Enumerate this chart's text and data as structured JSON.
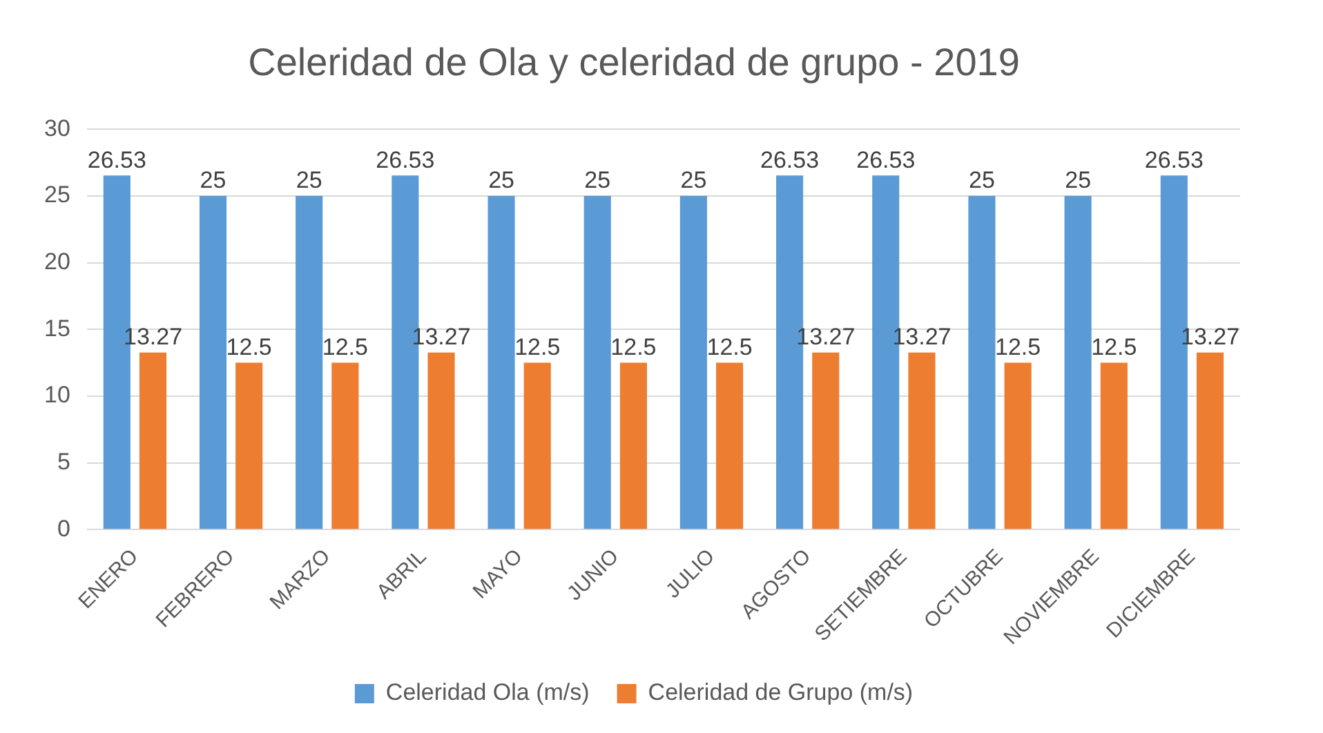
{
  "chart_data": {
    "type": "bar",
    "title": "Celeridad de Ola y celeridad de grupo - 2019",
    "categories": [
      "ENERO",
      "FEBRERO",
      "MARZO",
      "ABRIL",
      "MAYO",
      "JUNIO",
      "JULIO",
      "AGOSTO",
      "SETIEMBRE",
      "OCTUBRE",
      "NOVIEMBRE",
      "DICIEMBRE"
    ],
    "series": [
      {
        "name": "Celeridad Ola (m/s)",
        "color": "#5b9bd5",
        "values": [
          26.53,
          25,
          25,
          26.53,
          25,
          25,
          25,
          26.53,
          26.53,
          25,
          25,
          26.53
        ]
      },
      {
        "name": "Celeridad de Grupo (m/s)",
        "color": "#ed7d31",
        "values": [
          13.27,
          12.5,
          12.5,
          13.27,
          12.5,
          12.5,
          12.5,
          13.27,
          13.27,
          12.5,
          12.5,
          13.27
        ]
      }
    ],
    "ylim": [
      0,
      30
    ],
    "yticks": [
      0,
      5,
      10,
      15,
      20,
      25,
      30
    ],
    "grid": "y",
    "legend": "bottom",
    "data_labels": true
  }
}
